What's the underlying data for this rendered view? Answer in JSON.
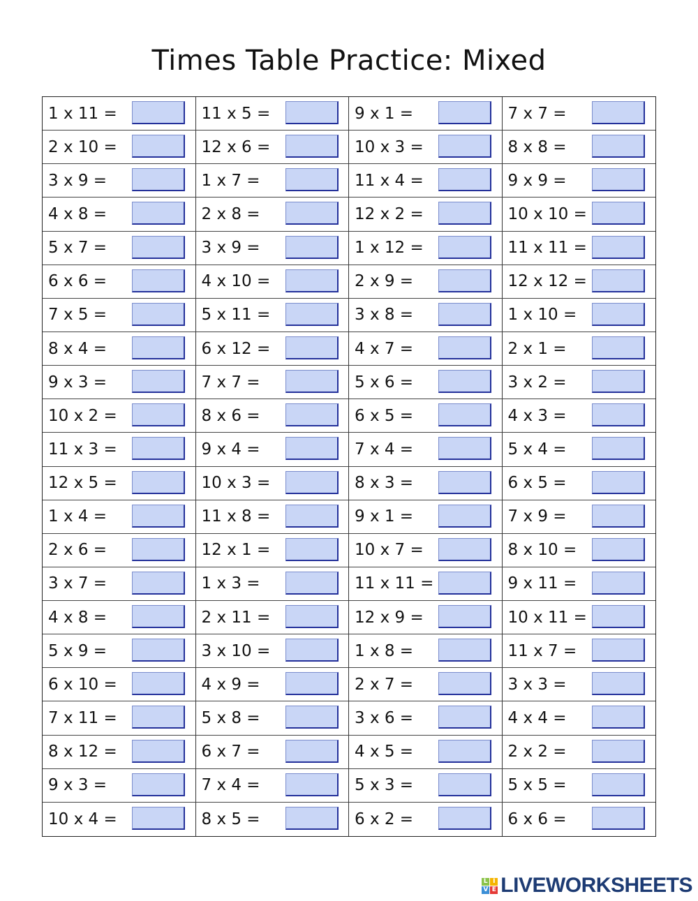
{
  "title": "Times Table Practice: Mixed",
  "answer_box_color": "#c9d6f6",
  "columns": [
    [
      "1 x 11 =",
      "2 x 10 =",
      "3 x 9 =",
      "4 x 8 =",
      "5 x 7 =",
      "6 x 6 =",
      "7 x 5 =",
      "8 x 4 =",
      "9 x 3 =",
      "10 x 2 =",
      "11 x 3 =",
      "12 x 5 =",
      "1 x 4 =",
      "2 x 6 =",
      "3 x 7 =",
      "4 x 8 =",
      "5 x 9 =",
      "6 x 10 =",
      "7 x 11 =",
      "8 x 12 =",
      "9 x 3 =",
      "10 x 4 ="
    ],
    [
      "11 x 5 =",
      "12 x 6 =",
      "1 x 7 =",
      "2 x 8 =",
      "3 x 9 =",
      "4 x 10 =",
      "5 x 11 =",
      "6 x 12 =",
      "7 x 7 =",
      "8 x 6 =",
      "9 x 4 =",
      "10 x 3 =",
      "11 x 8 =",
      "12 x 1 =",
      "1 x 3 =",
      "2 x 11 =",
      "3 x 10 =",
      "4 x 9 =",
      "5 x 8 =",
      "6 x 7 =",
      "7 x 4 =",
      "8 x 5 ="
    ],
    [
      "9 x 1 =",
      "10 x 3 =",
      "11 x 4 =",
      "12 x 2 =",
      "1 x 12 =",
      "2 x 9 =",
      "3 x 8 =",
      "4 x 7 =",
      "5 x 6 =",
      "6 x 5 =",
      "7 x 4 =",
      "8 x 3 =",
      "9 x 1 =",
      "10 x 7 =",
      "11 x 11 =",
      "12 x 9 =",
      "1 x 8 =",
      "2 x 7 =",
      "3 x 6 =",
      "4 x 5 =",
      "5 x 3 =",
      "6 x 2 ="
    ],
    [
      "7 x 7 =",
      "8 x 8 =",
      "9 x 9 =",
      "10 x 10 =",
      "11 x 11 =",
      "12 x 12 =",
      "1 x 10 =",
      "2 x 1 =",
      "3 x 2 =",
      "4 x 3 =",
      "5 x 4 =",
      "6 x 5 =",
      "7 x 9 =",
      "8 x 10 =",
      "9 x 11 =",
      "10 x 11 =",
      "11 x 7 =",
      "3 x 3 =",
      "4 x 4 =",
      "2 x 2 =",
      "5 x 5 =",
      "6 x 6 ="
    ]
  ],
  "logo": {
    "text": "LIVEWORKSHEETS",
    "letters": [
      "L",
      "I",
      "V",
      "E"
    ]
  }
}
